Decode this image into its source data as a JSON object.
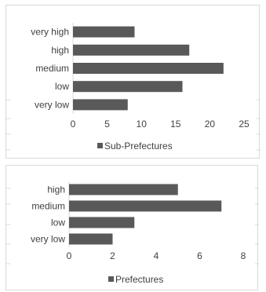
{
  "chart_data": [
    {
      "type": "bar",
      "orientation": "horizontal",
      "categories": [
        "very high",
        "high",
        "medium",
        "low",
        "very low"
      ],
      "series": [
        {
          "name": "Sub-Prefectures",
          "values": [
            9,
            17,
            22,
            16,
            8
          ]
        }
      ],
      "xlim": [
        0,
        25
      ],
      "xticks": [
        "0",
        "5",
        "10",
        "15",
        "20",
        "25"
      ],
      "grid": false,
      "legend": "bottom",
      "bar_color": "#595959"
    },
    {
      "type": "bar",
      "orientation": "horizontal",
      "categories": [
        "high",
        "medium",
        "low",
        "very low"
      ],
      "series": [
        {
          "name": "Prefectures",
          "values": [
            5,
            7,
            3,
            2
          ]
        }
      ],
      "xlim": [
        0,
        8
      ],
      "xticks": [
        "0",
        "2",
        "4",
        "6",
        "8"
      ],
      "grid": false,
      "legend": "bottom",
      "bar_color": "#595959"
    }
  ]
}
